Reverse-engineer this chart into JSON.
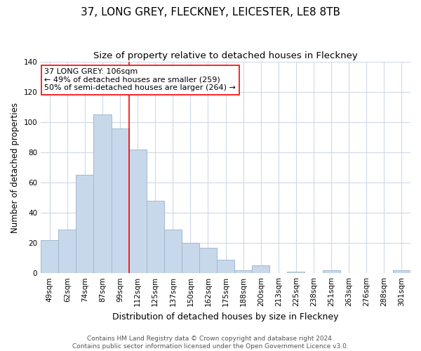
{
  "title": "37, LONG GREY, FLECKNEY, LEICESTER, LE8 8TB",
  "subtitle": "Size of property relative to detached houses in Fleckney",
  "xlabel": "Distribution of detached houses by size in Fleckney",
  "ylabel": "Number of detached properties",
  "bin_labels": [
    "49sqm",
    "62sqm",
    "74sqm",
    "87sqm",
    "99sqm",
    "112sqm",
    "125sqm",
    "137sqm",
    "150sqm",
    "162sqm",
    "175sqm",
    "188sqm",
    "200sqm",
    "213sqm",
    "225sqm",
    "238sqm",
    "251sqm",
    "263sqm",
    "276sqm",
    "288sqm",
    "301sqm"
  ],
  "bar_heights": [
    22,
    29,
    65,
    105,
    96,
    82,
    48,
    29,
    20,
    17,
    9,
    2,
    5,
    0,
    1,
    0,
    2,
    0,
    0,
    0,
    2
  ],
  "bar_color": "#c8d8eb",
  "bar_edge_color": "#a0b8d0",
  "vline_index": 5,
  "vline_color": "red",
  "ylim": [
    0,
    140
  ],
  "yticks": [
    0,
    20,
    40,
    60,
    80,
    100,
    120,
    140
  ],
  "annotation_title": "37 LONG GREY: 106sqm",
  "annotation_line1": "← 49% of detached houses are smaller (259)",
  "annotation_line2": "50% of semi-detached houses are larger (264) →",
  "footer1": "Contains HM Land Registry data © Crown copyright and database right 2024.",
  "footer2": "Contains public sector information licensed under the Open Government Licence v3.0.",
  "title_fontsize": 11,
  "subtitle_fontsize": 9.5,
  "xlabel_fontsize": 9,
  "ylabel_fontsize": 8.5,
  "tick_fontsize": 7.5,
  "footer_fontsize": 6.5
}
